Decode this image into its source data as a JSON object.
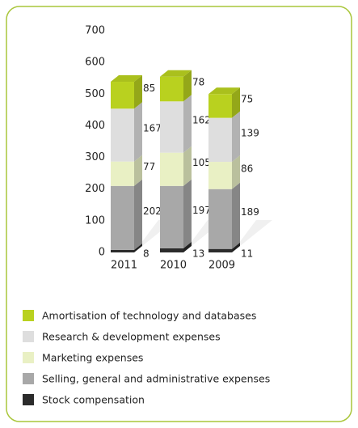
{
  "chart_data": {
    "type": "stacked-bar-3d",
    "categories": [
      "2011",
      "2010",
      "2009"
    ],
    "series": [
      {
        "name": "Stock compensation",
        "color": "#2b2b2b",
        "values": [
          8,
          13,
          11
        ]
      },
      {
        "name": "Selling, general and administrative expenses",
        "color": "#a8a8a8",
        "values": [
          202,
          197,
          189
        ]
      },
      {
        "name": "Marketing expenses",
        "color": "#e9f0c4",
        "values": [
          77,
          105,
          86
        ]
      },
      {
        "name": "Research & development expenses",
        "color": "#dedede",
        "values": [
          167,
          162,
          139
        ]
      },
      {
        "name": "Amortisation of technology and databases",
        "color": "#b9d11f",
        "values": [
          85,
          78,
          75
        ]
      }
    ],
    "ylim": [
      0,
      700
    ],
    "yticks": [
      0,
      100,
      200,
      300,
      400,
      500,
      600,
      700
    ],
    "grid": false
  }
}
